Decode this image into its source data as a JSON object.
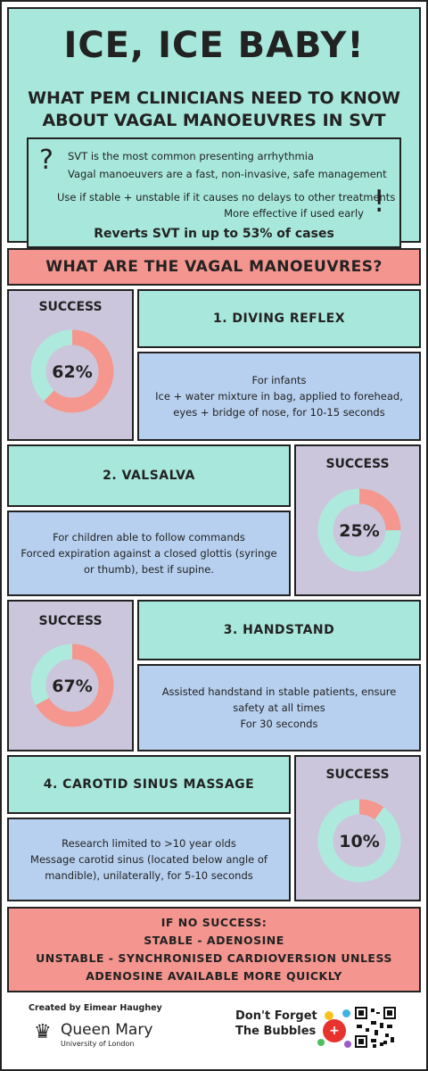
{
  "header": {
    "title": "ICE, ICE BABY!",
    "subtitle": "WHAT PEM CLINICIANS NEED TO KNOW ABOUT VAGAL MANOEUVRES IN SVT"
  },
  "intro": {
    "line1": "SVT is the most common presenting arrhythmia",
    "line2": "Vagal manoeuvers are a fast, non-invasive, safe management",
    "line3": "Use if stable + unstable if it causes no delays to other treatments",
    "line4": "More effective if used early",
    "line5": "Reverts SVT in up to 53% of cases",
    "question_glyph": "?",
    "exclaim_glyph": "!"
  },
  "section_heading": "WHAT ARE THE VAGAL MANOEUVRES?",
  "manoeuvres": [
    {
      "title": "1. DIVING REFLEX",
      "success_label": "SUCCESS",
      "success_percent": 62,
      "success_text": "62%",
      "desc": [
        "For infants",
        "Ice + water mixture in bag, applied to forehead,",
        "eyes + bridge of nose, for 10-15 seconds"
      ]
    },
    {
      "title": "2. VALSALVA",
      "success_label": "SUCCESS",
      "success_percent": 25,
      "success_text": "25%",
      "desc": [
        "For children able to follow commands",
        "Forced expiration against a closed glottis (syringe",
        "or thumb), best if supine."
      ]
    },
    {
      "title": "3. HANDSTAND",
      "success_label": "SUCCESS",
      "success_percent": 67,
      "success_text": "67%",
      "desc": [
        "Assisted handstand in stable patients, ensure",
        "safety at all times",
        "For 30 seconds"
      ]
    },
    {
      "title": "4. CAROTID SINUS MASSAGE",
      "success_label": "SUCCESS",
      "success_percent": 10,
      "success_text": "10%",
      "desc": [
        "Research limited to >10 year olds",
        "Message carotid sinus (located below angle of",
        "mandible), unilaterally, for 5-10 seconds"
      ]
    }
  ],
  "fallback": {
    "line1": "IF NO SUCCESS:",
    "line2": "STABLE - ADENOSINE",
    "line3": "UNSTABLE - SYNCHRONISED CARDIOVERSION UNLESS",
    "line4": "ADENOSINE AVAILABLE MORE QUICKLY"
  },
  "footer": {
    "credit": "Created by Eimear Haughey",
    "org_name": "Queen Mary",
    "org_sub": "University of London",
    "partner_line1": "Don't Forget",
    "partner_line2": "The Bubbles"
  },
  "colors": {
    "teal": "#a8e8dc",
    "pink": "#f4958f",
    "lavender": "#cbc6dc",
    "blue": "#b7d0ef",
    "ring_track": "#aee9dd",
    "ring_fill": "#f5968f"
  }
}
